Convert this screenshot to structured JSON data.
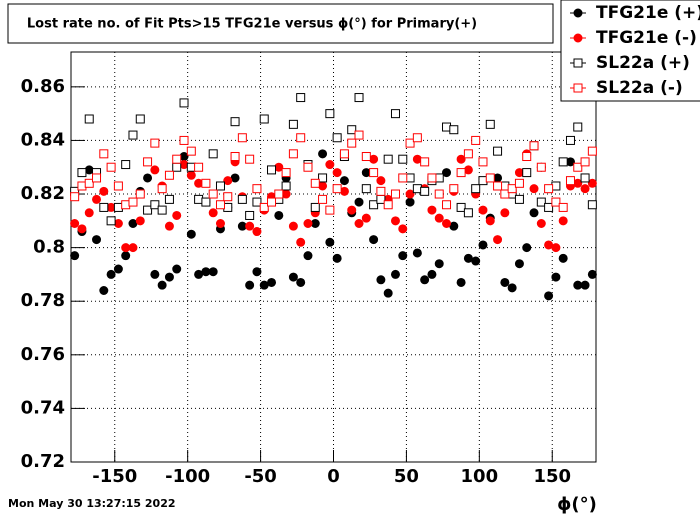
{
  "chart_data": {
    "type": "scatter",
    "title": "Lost rate no. of Fit Pts>15 TFG21e versus ϕ(°) for Primary(+)",
    "x_label": "ϕ(°)",
    "timestamp": "Mon May 30 13:27:15 2022",
    "xlim": [
      -180,
      180
    ],
    "xticks": [
      -150,
      -100,
      -50,
      0,
      50,
      100,
      150
    ],
    "ylim": [
      0.72,
      0.873
    ],
    "yticks": [
      0.72,
      0.74,
      0.76,
      0.78,
      0.8,
      0.82,
      0.84,
      0.86
    ],
    "grid": true,
    "legend": "top-right",
    "x": [
      -177.5,
      -172.5,
      -167.5,
      -162.5,
      -157.5,
      -152.5,
      -147.5,
      -142.5,
      -137.5,
      -132.5,
      -127.5,
      -122.5,
      -117.5,
      -112.5,
      -107.5,
      -102.5,
      -97.5,
      -92.5,
      -87.5,
      -82.5,
      -77.5,
      -72.5,
      -67.5,
      -62.5,
      -57.5,
      -52.5,
      -47.5,
      -42.5,
      -37.5,
      -32.5,
      -27.5,
      -22.5,
      -17.5,
      -12.5,
      -7.5,
      -2.5,
      2.5,
      7.5,
      12.5,
      17.5,
      22.5,
      27.5,
      32.5,
      37.5,
      42.5,
      47.5,
      52.5,
      57.5,
      62.5,
      67.5,
      72.5,
      77.5,
      82.5,
      87.5,
      92.5,
      97.5,
      102.5,
      107.5,
      112.5,
      117.5,
      122.5,
      127.5,
      132.5,
      137.5,
      142.5,
      147.5,
      152.5,
      157.5,
      162.5,
      167.5,
      172.5,
      177.5
    ],
    "series": [
      {
        "name": "TFG21e (+)",
        "color": "#000000",
        "marker": "circle",
        "filled": true,
        "error": 0.0015,
        "values": [
          0.797,
          0.806,
          0.829,
          0.803,
          0.784,
          0.79,
          0.792,
          0.797,
          0.809,
          0.821,
          0.826,
          0.79,
          0.786,
          0.789,
          0.792,
          0.834,
          0.805,
          0.79,
          0.791,
          0.791,
          0.807,
          0.815,
          0.826,
          0.808,
          0.786,
          0.791,
          0.786,
          0.787,
          0.812,
          0.826,
          0.789,
          0.787,
          0.797,
          0.809,
          0.835,
          0.802,
          0.796,
          0.825,
          0.813,
          0.817,
          0.828,
          0.803,
          0.788,
          0.783,
          0.79,
          0.797,
          0.817,
          0.798,
          0.788,
          0.79,
          0.794,
          0.828,
          0.808,
          0.787,
          0.796,
          0.795,
          0.801,
          0.811,
          0.826,
          0.787,
          0.785,
          0.794,
          0.8,
          0.813,
          0.83,
          0.782,
          0.789,
          0.796,
          0.832,
          0.786,
          0.786,
          0.79
        ]
      },
      {
        "name": "TFG21e (-)",
        "color": "#ff0000",
        "marker": "circle",
        "filled": true,
        "error": 0.0015,
        "values": [
          0.809,
          0.807,
          0.813,
          0.818,
          0.821,
          0.815,
          0.809,
          0.8,
          0.8,
          0.81,
          0.814,
          0.829,
          0.823,
          0.808,
          0.812,
          0.831,
          0.827,
          0.824,
          0.817,
          0.813,
          0.809,
          0.825,
          0.832,
          0.819,
          0.808,
          0.806,
          0.814,
          0.819,
          0.83,
          0.82,
          0.808,
          0.802,
          0.809,
          0.813,
          0.823,
          0.831,
          0.828,
          0.821,
          0.814,
          0.809,
          0.811,
          0.833,
          0.825,
          0.818,
          0.81,
          0.807,
          0.82,
          0.833,
          0.822,
          0.814,
          0.811,
          0.809,
          0.821,
          0.833,
          0.829,
          0.82,
          0.814,
          0.81,
          0.803,
          0.813,
          0.82,
          0.828,
          0.835,
          0.822,
          0.809,
          0.801,
          0.8,
          0.81,
          0.823,
          0.824,
          0.822,
          0.824
        ]
      },
      {
        "name": "SL22a (+)",
        "color": "#000000",
        "marker": "square",
        "filled": false,
        "error": 0.0015,
        "values": [
          0.821,
          0.828,
          0.848,
          0.828,
          0.815,
          0.81,
          0.815,
          0.831,
          0.842,
          0.848,
          0.814,
          0.816,
          0.814,
          0.818,
          0.83,
          0.854,
          0.83,
          0.818,
          0.817,
          0.835,
          0.823,
          0.815,
          0.847,
          0.818,
          0.812,
          0.817,
          0.848,
          0.829,
          0.818,
          0.823,
          0.846,
          0.856,
          0.831,
          0.815,
          0.826,
          0.85,
          0.841,
          0.834,
          0.844,
          0.856,
          0.822,
          0.816,
          0.818,
          0.833,
          0.85,
          0.833,
          0.826,
          0.822,
          0.821,
          0.825,
          0.826,
          0.845,
          0.844,
          0.815,
          0.813,
          0.822,
          0.825,
          0.846,
          0.836,
          0.823,
          0.82,
          0.818,
          0.828,
          0.838,
          0.817,
          0.815,
          0.823,
          0.832,
          0.84,
          0.845,
          0.826,
          0.816
        ]
      },
      {
        "name": "SL22a (-)",
        "color": "#ff0000",
        "marker": "square",
        "filled": false,
        "error": 0.0015,
        "values": [
          0.819,
          0.823,
          0.824,
          0.826,
          0.835,
          0.83,
          0.823,
          0.816,
          0.817,
          0.82,
          0.832,
          0.839,
          0.822,
          0.827,
          0.833,
          0.84,
          0.836,
          0.83,
          0.824,
          0.82,
          0.816,
          0.819,
          0.834,
          0.841,
          0.833,
          0.822,
          0.815,
          0.817,
          0.82,
          0.828,
          0.835,
          0.841,
          0.83,
          0.824,
          0.818,
          0.814,
          0.822,
          0.835,
          0.839,
          0.842,
          0.834,
          0.828,
          0.821,
          0.816,
          0.82,
          0.826,
          0.839,
          0.841,
          0.832,
          0.826,
          0.82,
          0.816,
          0.822,
          0.828,
          0.835,
          0.84,
          0.832,
          0.826,
          0.823,
          0.82,
          0.822,
          0.824,
          0.834,
          0.838,
          0.83,
          0.822,
          0.817,
          0.815,
          0.825,
          0.83,
          0.832,
          0.836
        ]
      }
    ]
  }
}
